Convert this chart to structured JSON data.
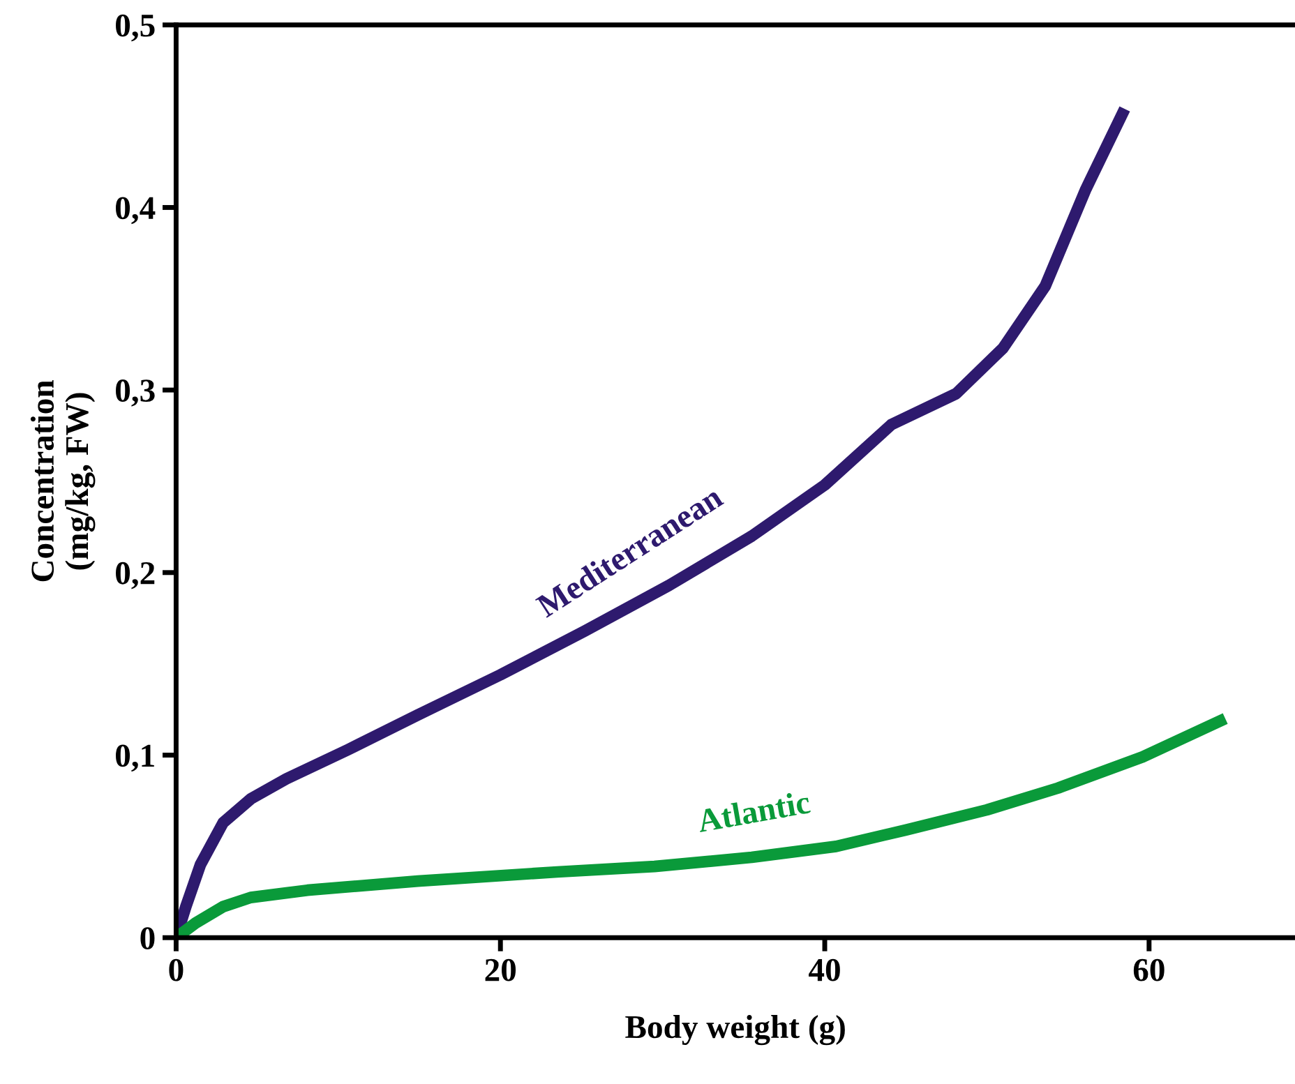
{
  "chart_data": {
    "type": "line",
    "xlabel": "Body weight (g)",
    "ylabel": "Concentration\n(mg/kg, FW)",
    "xlim": [
      0,
      69
    ],
    "ylim": [
      0,
      0.5
    ],
    "xticks": [
      0,
      20,
      40,
      60
    ],
    "yticks": [
      {
        "value": 0,
        "label": "0"
      },
      {
        "value": 0.1,
        "label": "0,1"
      },
      {
        "value": 0.2,
        "label": "0,2"
      },
      {
        "value": 0.3,
        "label": "0,3"
      },
      {
        "value": 0.4,
        "label": "0,4"
      },
      {
        "value": 0.5,
        "label": "0,5"
      }
    ],
    "grid": false,
    "legend": false,
    "marker": "none",
    "line_style": "solid",
    "series": [
      {
        "name": "Mediterranean",
        "color": "#2e1a6e",
        "x": [
          0,
          0.6,
          1.5,
          2.9,
          4.6,
          6.8,
          10.6,
          14.9,
          20,
          25.2,
          30.4,
          35.5,
          40,
          44.1,
          48.1,
          51,
          53.6,
          56.1,
          58.5
        ],
        "values": [
          0,
          0.017,
          0.04,
          0.063,
          0.076,
          0.087,
          0.103,
          0.122,
          0.144,
          0.168,
          0.193,
          0.22,
          0.248,
          0.281,
          0.298,
          0.323,
          0.357,
          0.41,
          0.454
        ]
      },
      {
        "name": "Atlantic",
        "color": "#0a9a3a",
        "x": [
          0,
          1.2,
          2.9,
          4.6,
          8.1,
          14.9,
          23.5,
          29.5,
          35.5,
          40.7,
          45,
          50,
          54.4,
          59.6,
          64.7
        ],
        "values": [
          0,
          0.008,
          0.017,
          0.022,
          0.026,
          0.031,
          0.036,
          0.039,
          0.044,
          0.05,
          0.059,
          0.07,
          0.082,
          0.099,
          0.12
        ]
      }
    ]
  }
}
